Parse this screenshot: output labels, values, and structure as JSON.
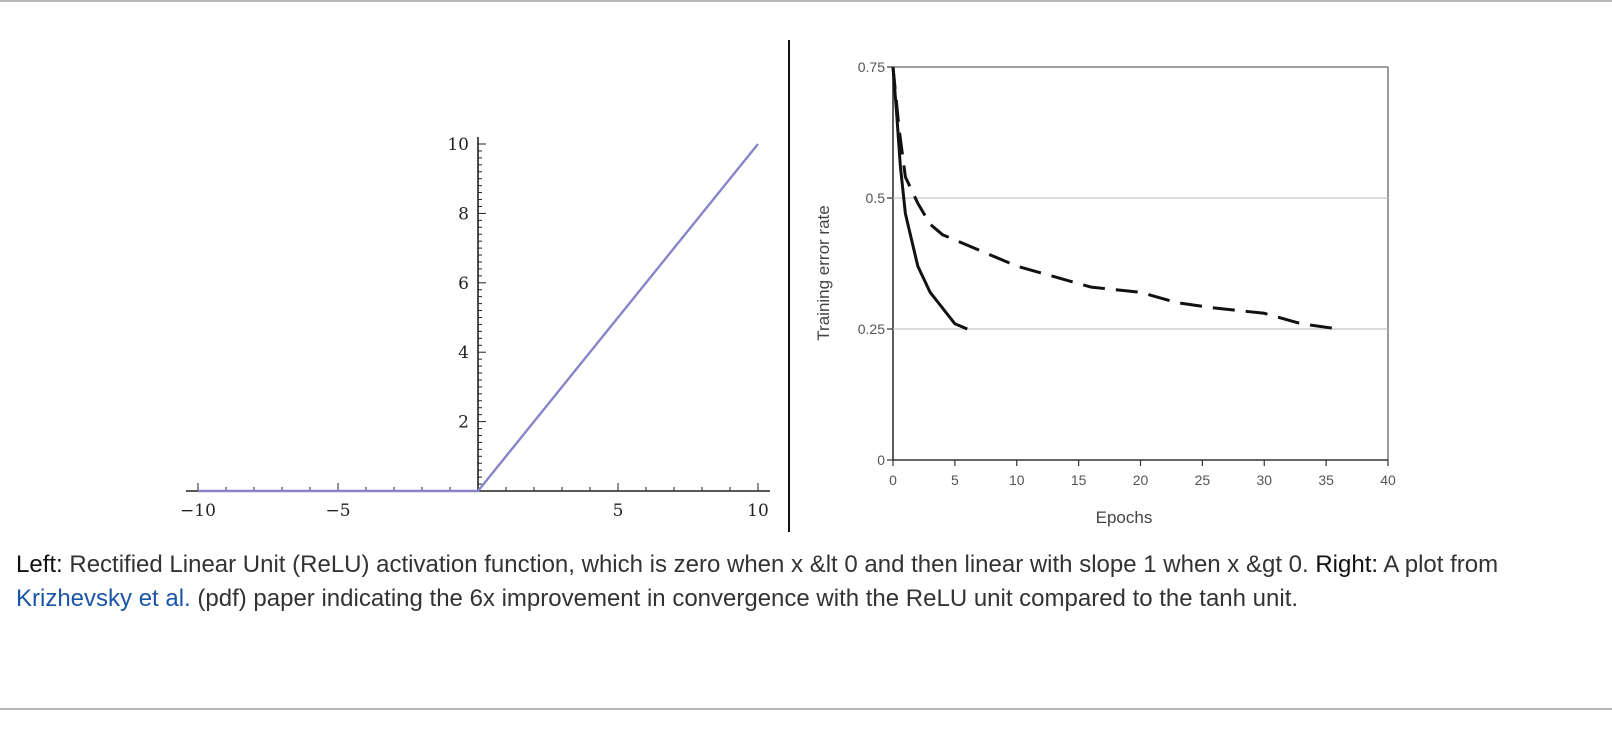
{
  "chart_data": [
    {
      "type": "line",
      "title": "",
      "xlabel": "",
      "ylabel": "",
      "xlim": [
        -10.5,
        10.5
      ],
      "ylim": [
        0,
        10
      ],
      "x_ticks": [
        -10,
        -5,
        5,
        10
      ],
      "x_tick_labels": [
        "−10",
        "−5",
        "5",
        "10"
      ],
      "y_ticks": [
        2,
        4,
        6,
        8,
        10
      ],
      "y_tick_labels": [
        "2",
        "4",
        "6",
        "8",
        "10"
      ],
      "grid": false,
      "series": [
        {
          "color": "#8a85c8",
          "x": [
            -10,
            0,
            10
          ],
          "y": [
            0,
            0,
            10
          ]
        }
      ]
    },
    {
      "type": "line",
      "title": "",
      "xlabel": "Epochs",
      "ylabel": "Training error rate",
      "xlim": [
        0,
        40
      ],
      "ylim": [
        0,
        0.75
      ],
      "x_ticks": [
        0,
        5,
        10,
        15,
        20,
        25,
        30,
        35,
        40
      ],
      "x_tick_labels": [
        "0",
        "5",
        "10",
        "15",
        "20",
        "25",
        "30",
        "35",
        "40"
      ],
      "y_ticks": [
        0,
        0.25,
        0.5,
        0.75
      ],
      "y_tick_labels": [
        "0",
        "0.25",
        "0.5",
        "0.75"
      ],
      "grid": true,
      "series": [
        {
          "style": "solid",
          "color": "#111111",
          "x": [
            0,
            0.3,
            0.6,
            1,
            2,
            3,
            4,
            5,
            6
          ],
          "y": [
            0.75,
            0.66,
            0.56,
            0.47,
            0.37,
            0.32,
            0.29,
            0.26,
            0.25
          ]
        },
        {
          "style": "dashed",
          "color": "#111111",
          "x": [
            0,
            0.5,
            1,
            2,
            3,
            4,
            5,
            7,
            10,
            13,
            16,
            20,
            23,
            26,
            30,
            33,
            36
          ],
          "y": [
            0.75,
            0.63,
            0.54,
            0.49,
            0.45,
            0.43,
            0.42,
            0.4,
            0.37,
            0.35,
            0.33,
            0.32,
            0.3,
            0.29,
            0.28,
            0.26,
            0.25
          ]
        }
      ]
    }
  ],
  "caption": {
    "left_label": "Left:",
    "left_text": " Rectified Linear Unit (ReLU) activation function, which is zero when x &lt 0 and then linear with slope 1 when x &gt 0. ",
    "right_label": "Right:",
    "text_before_link": " A plot from ",
    "link_text": "Krizhevsky et al.",
    "text_after_link": " (pdf) paper indicating the 6x improvement in convergence with the ReLU unit compared to the tanh unit."
  }
}
